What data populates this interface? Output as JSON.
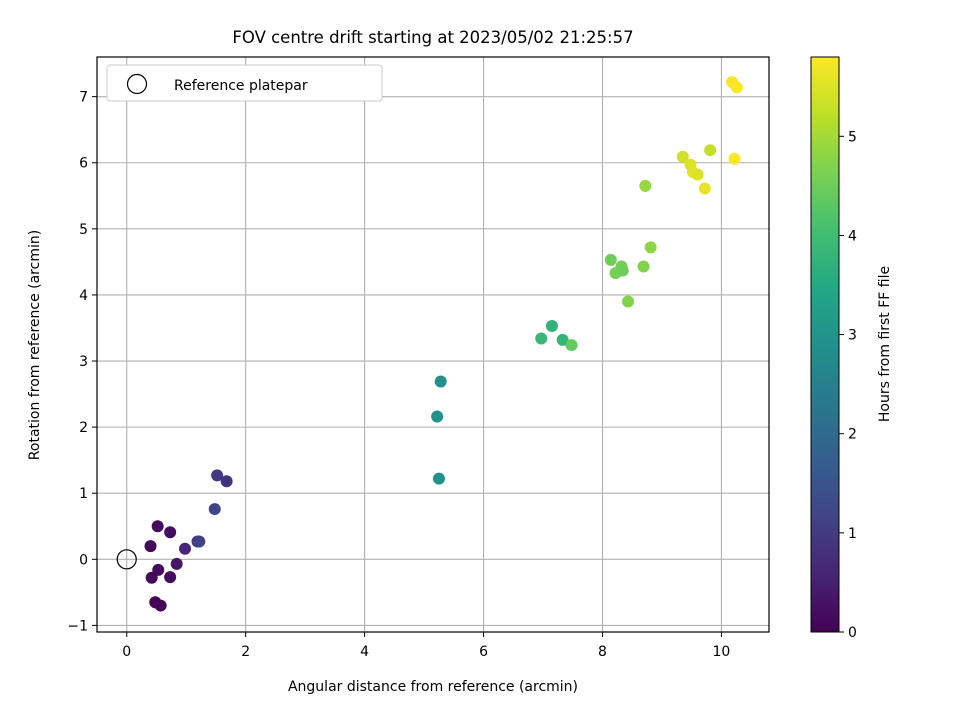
{
  "chart_data": {
    "type": "scatter",
    "title": "FOV centre drift starting at 2023/05/02 21:25:57",
    "xlabel": "Angular distance from reference (arcmin)",
    "ylabel": "Rotation from reference (arcmin)",
    "colorbar_label": "Hours from first FF file",
    "xlim": [
      -0.5,
      10.8
    ],
    "ylim": [
      -1.1,
      7.6
    ],
    "clim": [
      0,
      5.8
    ],
    "xticks": [
      0,
      2,
      4,
      6,
      8,
      10
    ],
    "xtick_labels": [
      "0",
      "2",
      "4",
      "6",
      "8",
      "10"
    ],
    "yticks": [
      -1,
      0,
      1,
      2,
      3,
      4,
      5,
      6,
      7
    ],
    "ytick_labels": [
      "−1",
      "0",
      "1",
      "2",
      "3",
      "4",
      "5",
      "6",
      "7"
    ],
    "cticks": [
      0,
      1,
      2,
      3,
      4,
      5
    ],
    "ctick_labels": [
      "0",
      "1",
      "2",
      "3",
      "4",
      "5"
    ],
    "colormap": "viridis",
    "grid": true,
    "legend_position": "upper-left",
    "reference": {
      "label": "Reference platepar",
      "x": 0,
      "y": 0
    },
    "points": [
      {
        "x": 0.4,
        "y": 0.2,
        "h": 0.1
      },
      {
        "x": 0.52,
        "y": 0.5,
        "h": 0.15
      },
      {
        "x": 0.73,
        "y": 0.41,
        "h": 0.2
      },
      {
        "x": 0.42,
        "y": -0.28,
        "h": 0.1
      },
      {
        "x": 0.53,
        "y": -0.16,
        "h": 0.15
      },
      {
        "x": 0.73,
        "y": -0.27,
        "h": 0.18
      },
      {
        "x": 0.48,
        "y": -0.65,
        "h": 0.05
      },
      {
        "x": 0.57,
        "y": -0.7,
        "h": 0.05
      },
      {
        "x": 0.84,
        "y": -0.07,
        "h": 0.35
      },
      {
        "x": 0.98,
        "y": 0.16,
        "h": 0.6
      },
      {
        "x": 1.19,
        "y": 0.27,
        "h": 1.0
      },
      {
        "x": 1.22,
        "y": 0.27,
        "h": 1.1
      },
      {
        "x": 1.48,
        "y": 0.76,
        "h": 1.15
      },
      {
        "x": 1.52,
        "y": 1.27,
        "h": 0.95
      },
      {
        "x": 1.68,
        "y": 1.18,
        "h": 0.85
      },
      {
        "x": 5.25,
        "y": 1.22,
        "h": 2.9
      },
      {
        "x": 5.22,
        "y": 2.16,
        "h": 2.9
      },
      {
        "x": 5.28,
        "y": 2.69,
        "h": 2.85
      },
      {
        "x": 6.97,
        "y": 3.34,
        "h": 3.85
      },
      {
        "x": 7.15,
        "y": 3.53,
        "h": 3.75
      },
      {
        "x": 7.33,
        "y": 3.32,
        "h": 3.8
      },
      {
        "x": 7.48,
        "y": 3.24,
        "h": 4.4
      },
      {
        "x": 8.14,
        "y": 4.53,
        "h": 4.5
      },
      {
        "x": 8.22,
        "y": 4.33,
        "h": 4.6
      },
      {
        "x": 8.32,
        "y": 4.43,
        "h": 4.55
      },
      {
        "x": 8.34,
        "y": 4.37,
        "h": 4.5
      },
      {
        "x": 8.43,
        "y": 3.9,
        "h": 4.7
      },
      {
        "x": 8.69,
        "y": 4.43,
        "h": 4.7
      },
      {
        "x": 8.72,
        "y": 5.65,
        "h": 4.9
      },
      {
        "x": 8.81,
        "y": 4.72,
        "h": 4.8
      },
      {
        "x": 9.35,
        "y": 6.09,
        "h": 5.4
      },
      {
        "x": 9.48,
        "y": 5.97,
        "h": 5.5
      },
      {
        "x": 9.52,
        "y": 5.86,
        "h": 5.55
      },
      {
        "x": 9.6,
        "y": 5.82,
        "h": 5.5
      },
      {
        "x": 9.72,
        "y": 5.61,
        "h": 5.6
      },
      {
        "x": 9.81,
        "y": 6.19,
        "h": 5.3
      },
      {
        "x": 10.18,
        "y": 7.22,
        "h": 5.75
      },
      {
        "x": 10.26,
        "y": 7.14,
        "h": 5.8
      },
      {
        "x": 10.22,
        "y": 6.06,
        "h": 5.8
      }
    ]
  }
}
